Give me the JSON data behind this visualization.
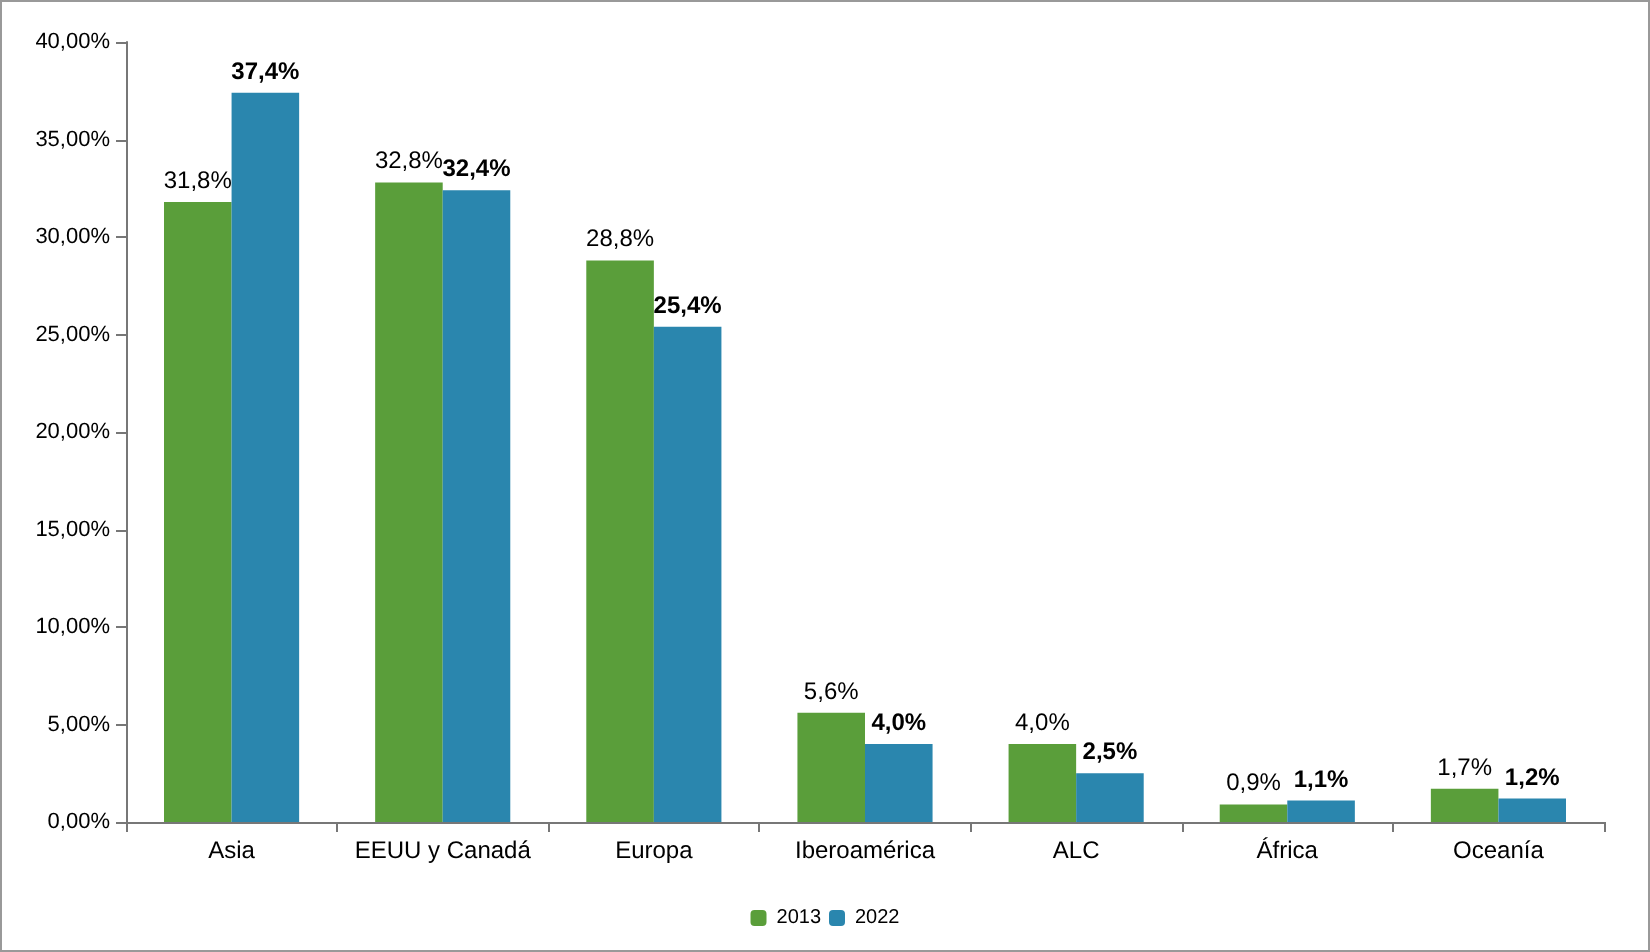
{
  "chart_data": {
    "type": "bar",
    "categories": [
      "Asia",
      "EEUU y Canadá",
      "Europa",
      "Iberoamérica",
      "ALC",
      "África",
      "Oceanía"
    ],
    "series": [
      {
        "name": "2013",
        "color": "#5a9e3a",
        "values": [
          31.8,
          32.8,
          28.8,
          5.6,
          4.0,
          0.9,
          1.7
        ],
        "value_labels": [
          "31,8%",
          "32,8%",
          "28,8%",
          "5,6%",
          "4,0%",
          "0,9%",
          "1,7%"
        ]
      },
      {
        "name": "2022",
        "color": "#2a86ae",
        "values": [
          37.4,
          32.4,
          25.4,
          4.0,
          2.5,
          1.1,
          1.2
        ],
        "value_labels": [
          "37,4%",
          "32,4%",
          "25,4%",
          "4,0%",
          "2,5%",
          "1,1%",
          "1,2%"
        ]
      }
    ],
    "ylim": [
      0,
      40
    ],
    "yticks": [
      {
        "value": 0,
        "label": "0,00%"
      },
      {
        "value": 5,
        "label": "5,00%"
      },
      {
        "value": 10,
        "label": "10,00%"
      },
      {
        "value": 15,
        "label": "15,00%"
      },
      {
        "value": 20,
        "label": "20,00%"
      },
      {
        "value": 25,
        "label": "25,00%"
      },
      {
        "value": 30,
        "label": "30,00%"
      },
      {
        "value": 35,
        "label": "35,00%"
      },
      {
        "value": 40,
        "label": "40,00%"
      }
    ],
    "grid": false,
    "legend": "bottom"
  }
}
